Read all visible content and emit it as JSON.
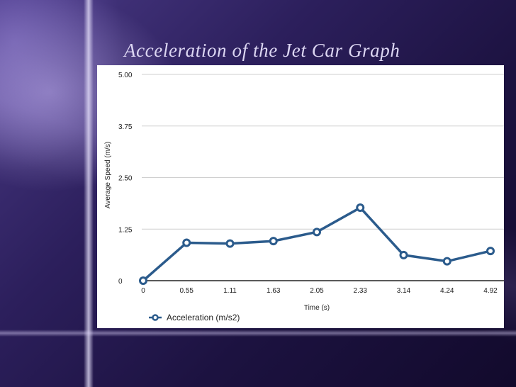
{
  "slide": {
    "title": "Acceleration of the Jet Car Graph"
  },
  "chart_data": {
    "type": "line",
    "categories": [
      "0",
      "0.55",
      "1.11",
      "1.63",
      "2.05",
      "2.33",
      "3.14",
      "4.24",
      "4.92"
    ],
    "series": [
      {
        "name": "Acceleration (m/s2)",
        "values": [
          0.0,
          0.92,
          0.9,
          0.96,
          1.18,
          1.77,
          0.62,
          0.47,
          0.72
        ],
        "color": "#2b5b8c"
      }
    ],
    "xlabel": "Time (s)",
    "ylabel": "Average Speed  (m/s)",
    "ylim": [
      0,
      5
    ],
    "yticks": [
      "0",
      "1.25",
      "2.50",
      "3.75",
      "5.00"
    ],
    "ytick_values": [
      0,
      1.25,
      2.5,
      3.75,
      5.0
    ],
    "grid": true,
    "legend_position": "bottom-left"
  }
}
